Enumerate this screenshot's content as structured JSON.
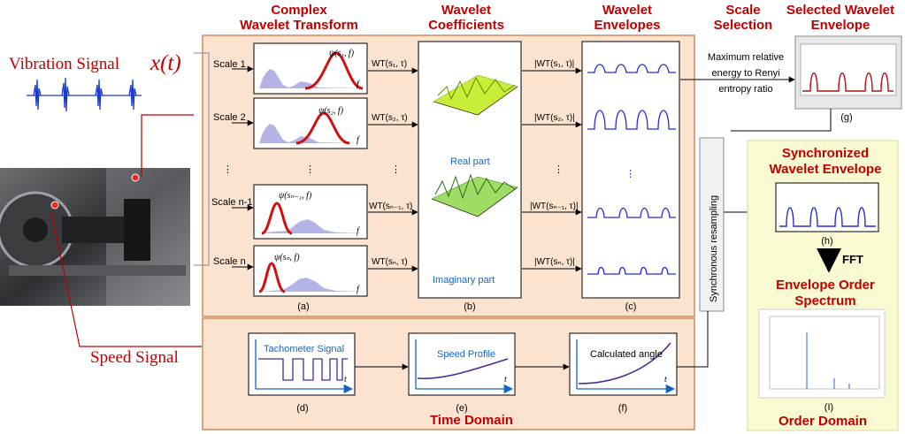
{
  "headers": {
    "cwt": [
      "Complex",
      "Wavelet Transform"
    ],
    "coeff": [
      "Wavelet",
      "Coefficients"
    ],
    "env": [
      "Wavelet",
      "Envelopes"
    ],
    "scale": [
      "Scale",
      "Selection"
    ],
    "selected": [
      "Selected Wavelet",
      "Envelope"
    ]
  },
  "vibration_label": "Vibration Signal",
  "vibration_var": "x(t)",
  "speed_label": "Speed Signal",
  "scales": [
    "Scale 1",
    "Scale 2",
    "Scale n-1",
    "Scale n"
  ],
  "psi_labels": [
    "ψ(s₁, f)",
    "ψ(s₂, f)",
    "ψ(sₙ₋₁, f)",
    "ψ(sₙ, f)"
  ],
  "wt_labels": [
    "WT(s₁, τ)",
    "WT(s₂, τ)",
    "WT(sₙ₋₁, τ)",
    "WT(sₙ, τ)"
  ],
  "abs_wt_labels": [
    "|WT(s₁, τ)|",
    "|WT(s₂, τ)|",
    "|WT(sₙ₋₁, τ)|",
    "|WT(sₙ, τ)|"
  ],
  "f_axis": "f",
  "dots": "⋮",
  "real_part": "Real part",
  "imag_part": "Imaginary part",
  "criterion": [
    "Maximum relative",
    "energy to Renyi",
    "entropy ratio"
  ],
  "resampling": "Synchronous resampling",
  "synced": [
    "Synchronized",
    "Wavelet Envelope"
  ],
  "fft": "FFT",
  "order_spectrum": [
    "Envelope Order",
    "Spectrum"
  ],
  "order_domain": "Order Domain",
  "time_domain": "Time Domain",
  "tacho": "Tachometer Signal",
  "speed_profile": "Speed Profile",
  "calc_angle": "Calculated angle",
  "t_axis": "t",
  "captions": {
    "a": "(a)",
    "b": "(b)",
    "c": "(c)",
    "d": "(d)",
    "e": "(e)",
    "f": "(f)",
    "g": "(g)",
    "h": "(h)",
    "i": "(I)"
  },
  "colors": {
    "accent": "#c00000",
    "panel": "#fbe3cf",
    "panel_border": "#d08a5a",
    "order_panel": "#fafad2",
    "curve_blue": "#2a2ad8",
    "curve_red": "#d01010",
    "hist": "#9999dd"
  }
}
